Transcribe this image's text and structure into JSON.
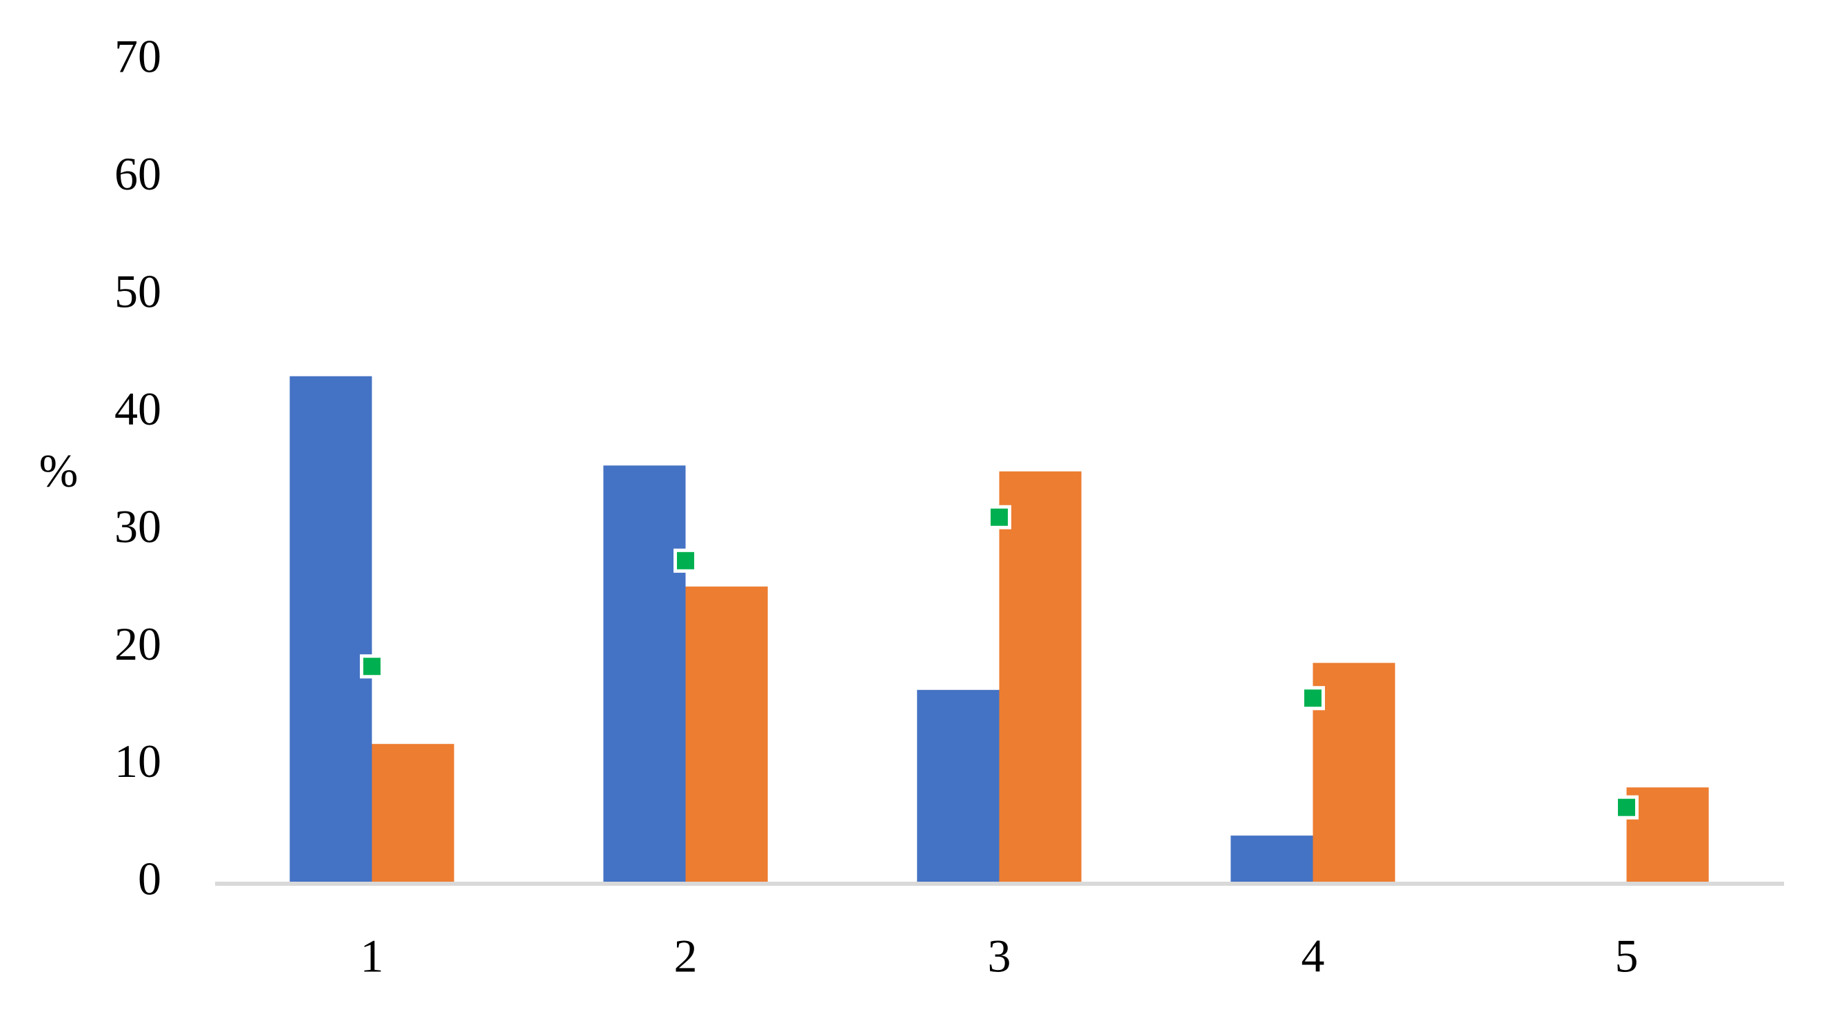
{
  "chart_data": {
    "type": "bar",
    "y_label": "%",
    "categories": [
      "1",
      "2",
      "3",
      "4",
      "5"
    ],
    "series": [
      {
        "color": "#4472c4",
        "values": [
          43.2,
          35.6,
          16.5,
          4.1,
          0
        ]
      },
      {
        "color": "#ed7d31",
        "values": [
          11.9,
          25.3,
          35.1,
          18.8,
          8.2
        ]
      },
      {
        "color": "#00b050",
        "marker": "square",
        "values": [
          18.5,
          27.5,
          31.2,
          15.8,
          6.5
        ]
      }
    ],
    "ylim": [
      0,
      70
    ],
    "yticks": [
      0,
      10,
      20,
      30,
      40,
      50,
      60,
      70
    ],
    "grid": false
  }
}
